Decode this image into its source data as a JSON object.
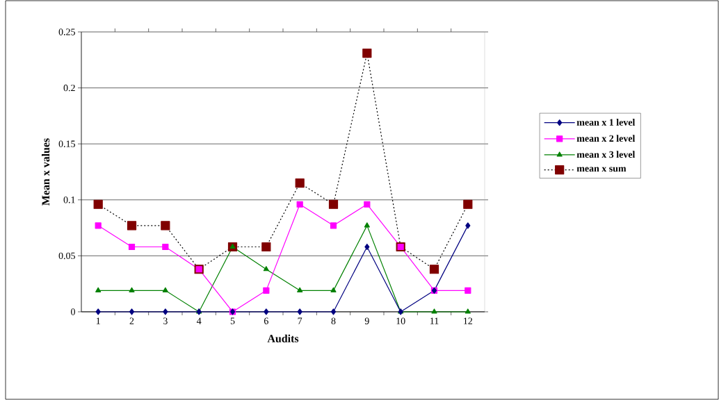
{
  "chart_data": {
    "type": "line",
    "xlabel": "Audits",
    "ylabel": "Mean x values",
    "categories": [
      "1",
      "2",
      "3",
      "4",
      "5",
      "6",
      "7",
      "8",
      "9",
      "10",
      "11",
      "12"
    ],
    "series": [
      {
        "name": "mean x 1 level",
        "color": "#000080",
        "marker": "diamond",
        "line_style": "solid",
        "values": [
          0,
          0,
          0,
          0,
          0,
          0,
          0,
          0,
          0.058,
          0,
          0.019,
          0.077
        ]
      },
      {
        "name": "mean x 2 level",
        "color": "#ff00ff",
        "marker": "square",
        "line_style": "solid",
        "values": [
          0.077,
          0.058,
          0.058,
          0.038,
          0,
          0.019,
          0.096,
          0.077,
          0.096,
          0.058,
          0.019,
          0.019
        ]
      },
      {
        "name": "mean x 3 level",
        "color": "#008000",
        "marker": "triangle",
        "line_style": "solid",
        "values": [
          0.019,
          0.019,
          0.019,
          0,
          0.058,
          0.038,
          0.019,
          0.019,
          0.077,
          0,
          0,
          0
        ]
      },
      {
        "name": "mean x sum",
        "color": "#800000",
        "marker": "square",
        "line_style": "dotted",
        "values": [
          0.096,
          0.077,
          0.077,
          0.038,
          0.058,
          0.058,
          0.115,
          0.096,
          0.231,
          0.058,
          0.038,
          0.096
        ]
      }
    ],
    "ylim": [
      0,
      0.25
    ],
    "yticks": [
      0,
      0.05,
      0.1,
      0.15,
      0.2,
      0.25
    ],
    "grid": "y",
    "legend": "right"
  }
}
